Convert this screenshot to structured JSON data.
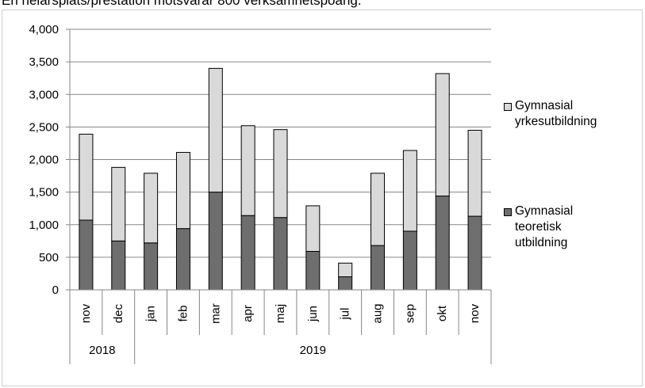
{
  "caption": "En helårsplats/prestation motsvarar 800 verksamhetspoäng.",
  "colors": {
    "teoretisk": "#6e6e6e",
    "yrkes": "#d9d9d9",
    "axis": "#868686",
    "grid": "#868686"
  },
  "chart_data": {
    "type": "bar",
    "stacked": true,
    "categories": [
      "nov",
      "dec",
      "jan",
      "feb",
      "mar",
      "apr",
      "maj",
      "jun",
      "jul",
      "aug",
      "sep",
      "okt",
      "nov"
    ],
    "year_groups": [
      {
        "label": "2018",
        "count": 2
      },
      {
        "label": "2019",
        "count": 11
      }
    ],
    "series": [
      {
        "name": "Gymnasial teoretisk utbildning",
        "values": [
          1070,
          750,
          720,
          940,
          1500,
          1140,
          1110,
          590,
          200,
          680,
          900,
          1440,
          1130
        ]
      },
      {
        "name": "Gymnasial yrkesutbildning",
        "values": [
          1320,
          1130,
          1070,
          1170,
          1900,
          1380,
          1350,
          700,
          210,
          1110,
          1240,
          1880,
          1320
        ]
      }
    ],
    "yticks": [
      "0",
      "500",
      "1,000",
      "1,500",
      "2,000",
      "2,500",
      "3,000",
      "3,500",
      "4,000"
    ],
    "ylim": [
      0,
      4000
    ],
    "legend_position": "right",
    "grid": true
  },
  "legend": {
    "yrkes": [
      "Gymnasial",
      "yrkesutbildning"
    ],
    "teoretisk": [
      "Gymnasial",
      "teoretisk",
      "utbildning"
    ]
  }
}
